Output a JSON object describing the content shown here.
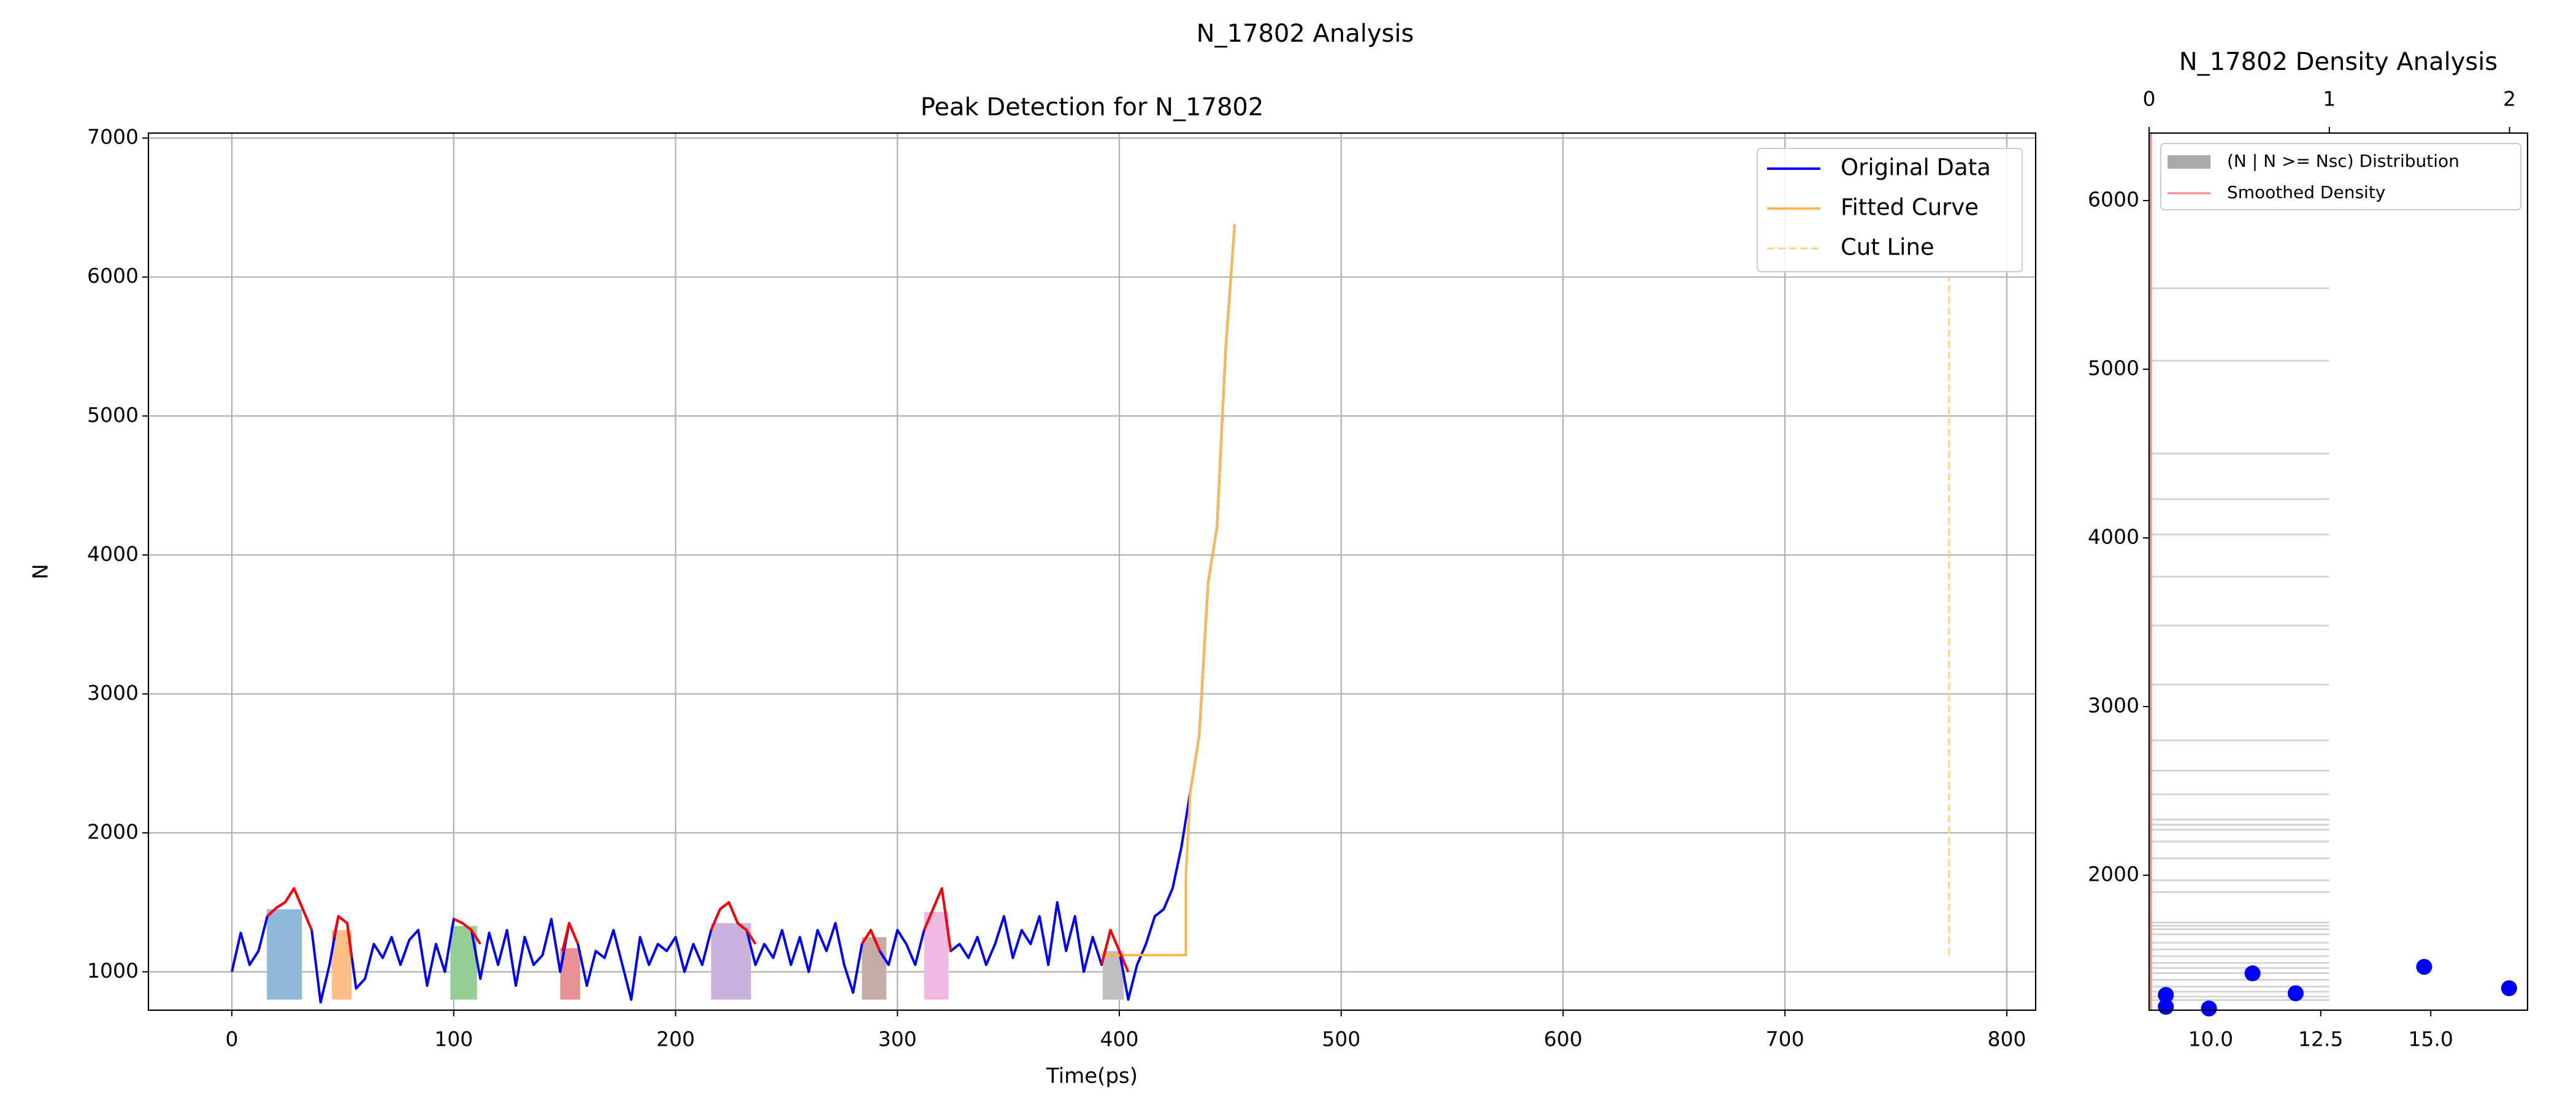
{
  "title": "N_17802 Analysis",
  "chart_data": [
    {
      "type": "line",
      "title": "Peak Detection for N_17802",
      "x_label": "Time(ps)",
      "y_label": "N",
      "x": [
        0,
        4,
        8,
        12,
        16,
        20,
        24,
        28,
        32,
        36,
        40,
        44,
        48,
        52,
        56,
        60,
        64,
        68,
        72,
        76,
        80,
        84,
        88,
        92,
        96,
        100,
        104,
        108,
        112,
        116,
        120,
        124,
        128,
        132,
        136,
        140,
        144,
        148,
        152,
        156,
        160,
        164,
        168,
        172,
        176,
        180,
        184,
        188,
        192,
        196,
        200,
        204,
        208,
        212,
        216,
        220,
        224,
        228,
        232,
        236,
        240,
        244,
        248,
        252,
        256,
        260,
        264,
        268,
        272,
        276,
        280,
        284,
        288,
        292,
        296,
        300,
        304,
        308,
        312,
        316,
        320,
        324,
        328,
        332,
        336,
        340,
        344,
        348,
        352,
        356,
        360,
        364,
        368,
        372,
        376,
        380,
        384,
        388,
        392,
        396,
        400,
        404,
        408,
        412,
        416,
        420,
        424,
        428,
        432,
        436,
        440,
        444,
        448,
        452
      ],
      "xlim": [
        -37.6,
        813
      ],
      "ylim": [
        724,
        7036
      ],
      "xticks": [
        0,
        100,
        200,
        300,
        400,
        500,
        600,
        700,
        800
      ],
      "yticks": [
        1000,
        2000,
        3000,
        4000,
        5000,
        6000,
        7000
      ],
      "grid": true,
      "legend": "upper right",
      "series": [
        {
          "name": "Original Data",
          "color": "#0000ff",
          "values": [
            1000,
            1280,
            1050,
            1150,
            1400,
            1460,
            1500,
            1600,
            1450,
            1300,
            780,
            1050,
            1400,
            1350,
            880,
            950,
            1200,
            1100,
            1250,
            1050,
            1230,
            1300,
            900,
            1200,
            1000,
            1380,
            1350,
            1300,
            950,
            1280,
            1050,
            1300,
            900,
            1250,
            1050,
            1120,
            1380,
            1000,
            1350,
            1200,
            900,
            1150,
            1100,
            1300,
            1050,
            800,
            1250,
            1050,
            1200,
            1150,
            1250,
            1000,
            1200,
            1050,
            1300,
            1450,
            1500,
            1350,
            1300,
            1050,
            1200,
            1100,
            1300,
            1050,
            1250,
            1000,
            1300,
            1150,
            1350,
            1050,
            850,
            1200,
            1300,
            1150,
            1050,
            1300,
            1200,
            1050,
            1300,
            1450,
            1600,
            1150,
            1200,
            1100,
            1250,
            1050,
            1200,
            1400,
            1100,
            1300,
            1200,
            1400,
            1050,
            1500,
            1150,
            1400,
            1000,
            1250,
            1050,
            1300,
            1150,
            800,
            1050,
            1200,
            1400,
            1450,
            1600,
            1900,
            2300,
            2700,
            3800,
            4200,
            5500,
            6380
          ]
        },
        {
          "name": "Fitted Curve",
          "color": "#ffb84d",
          "x": [
            392,
            430,
            430,
            432,
            436,
            440,
            444,
            448,
            452
          ],
          "values": [
            1120,
            1120,
            1700,
            2300,
            2700,
            3800,
            4200,
            5500,
            6380
          ]
        },
        {
          "name": "Cut Line",
          "color": "#ffd27f",
          "dashed": true,
          "x": [
            774,
            774
          ],
          "values": [
            1120,
            6000
          ]
        },
        {
          "color": "#ff0000",
          "x": [
            16,
            20,
            24,
            28,
            32,
            36
          ],
          "values": [
            1400,
            1460,
            1500,
            1600,
            1450,
            1300
          ]
        },
        {
          "color": "#ff0000",
          "x": [
            46,
            48,
            52,
            54
          ],
          "values": [
            1250,
            1400,
            1350,
            1100
          ]
        },
        {
          "color": "#ff0000",
          "x": [
            100,
            104,
            108,
            112
          ],
          "values": [
            1380,
            1350,
            1300,
            1200
          ]
        },
        {
          "color": "#ff0000",
          "x": [
            149,
            152,
            156
          ],
          "values": [
            1150,
            1350,
            1200
          ]
        },
        {
          "color": "#ff0000",
          "x": [
            216,
            220,
            224,
            228,
            232,
            236
          ],
          "values": [
            1300,
            1450,
            1500,
            1350,
            1300,
            1200
          ]
        },
        {
          "color": "#ff0000",
          "x": [
            284,
            288,
            292
          ],
          "values": [
            1200,
            1300,
            1150
          ]
        },
        {
          "color": "#ff0000",
          "x": [
            312,
            316,
            320,
            324
          ],
          "values": [
            1300,
            1450,
            1600,
            1150
          ]
        },
        {
          "color": "#ff0000",
          "x": [
            392,
            396,
            400,
            404
          ],
          "values": [
            1050,
            1300,
            1150,
            1000
          ]
        }
      ],
      "peak_regions": [
        {
          "x": [
            15.8,
            31.6
          ],
          "y": [
            800,
            1450
          ],
          "color": "#8fb9da"
        },
        {
          "x": [
            45,
            54
          ],
          "y": [
            800,
            1300
          ],
          "color": "#ffbf86"
        },
        {
          "x": [
            98.5,
            110.5
          ],
          "y": [
            800,
            1330
          ],
          "color": "#95cf95"
        },
        {
          "x": [
            148,
            157
          ],
          "y": [
            800,
            1170
          ],
          "color": "#ea9293"
        },
        {
          "x": [
            216,
            234
          ],
          "y": [
            800,
            1350
          ],
          "color": "#c9b3de"
        },
        {
          "x": [
            284,
            295
          ],
          "y": [
            800,
            1250
          ],
          "color": "#c6aaa5"
        },
        {
          "x": [
            312,
            323
          ],
          "y": [
            800,
            1430
          ],
          "color": "#f1b9e1"
        },
        {
          "x": [
            392.5,
            402
          ],
          "y": [
            800,
            1150
          ],
          "color": "#bfbfbf"
        }
      ]
    },
    {
      "type": "density",
      "title": "N_17802 Density Analysis",
      "xlim": [
        0,
        2.1
      ],
      "xticks": [
        0,
        1,
        2
      ],
      "x2lim": [
        8.6,
        17.2
      ],
      "x2ticks": [
        {
          "value": 10,
          "label": "10.0"
        },
        {
          "value": 12.5,
          "label": "12.5"
        },
        {
          "value": 15,
          "label": "15.0"
        }
      ],
      "ylim": [
        1200,
        6400
      ],
      "yticks": [
        2000,
        3000,
        4000,
        5000,
        6000
      ],
      "legend": "upper left",
      "series": [
        {
          "name": "(N | N >= Nsc) Distribution",
          "color": "#aaaaaa",
          "y": [
            5480,
            5050,
            4500,
            4230,
            4020,
            3770,
            3480,
            3130,
            2800,
            2620,
            2480,
            2330,
            2300,
            2270,
            2200,
            2100,
            1970,
            1900,
            1720,
            1700,
            1680,
            1650,
            1600,
            1560,
            1520,
            1480,
            1450,
            1420,
            1380,
            1340,
            1310,
            1280,
            1260
          ],
          "values": [
            1,
            1,
            1,
            1,
            1,
            1,
            1,
            1,
            1,
            1,
            1,
            1,
            1,
            1,
            1,
            1,
            1,
            1,
            1,
            1,
            1,
            1,
            1,
            1,
            1,
            1,
            1,
            1,
            1,
            1,
            1,
            1,
            1
          ]
        },
        {
          "name": "Smoothed Density",
          "color": "#ff8080",
          "y": [
            1200,
            6400
          ],
          "values": [
            0.01,
            0.01
          ]
        },
        {
          "color": "#0000ff",
          "axis": "x2",
          "x": [
            8.98,
            8.98,
            9.96,
            10.95,
            11.93,
            14.85,
            16.78
          ],
          "values": [
            1290,
            1220,
            1210,
            1418,
            1300,
            1457,
            1330
          ]
        }
      ]
    }
  ]
}
